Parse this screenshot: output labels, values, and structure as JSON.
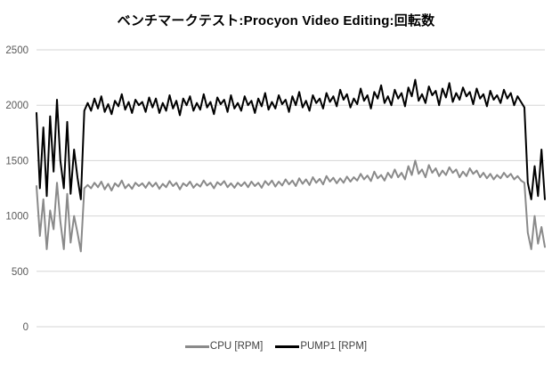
{
  "chart_data": {
    "type": "line",
    "title": "ベンチマークテスト:Procyon Video Editing:回転数",
    "xlabel": "",
    "ylabel": "",
    "ylim": [
      0,
      2500
    ],
    "yticks": [
      0,
      500,
      1000,
      1500,
      2000,
      2500
    ],
    "grid": "horizontal",
    "gridline_color": "#d6d6d6",
    "tick_label_color": "#595959",
    "legend_position": "bottom-center",
    "series": [
      {
        "name": "CPU [RPM]",
        "color": "#8a8a8a",
        "values": [
          1270,
          820,
          1150,
          700,
          1050,
          880,
          1300,
          950,
          700,
          1200,
          760,
          1000,
          850,
          680,
          1250,
          1280,
          1250,
          1300,
          1260,
          1310,
          1240,
          1290,
          1230,
          1295,
          1265,
          1320,
          1250,
          1285,
          1245,
          1300,
          1270,
          1295,
          1255,
          1305,
          1265,
          1300,
          1245,
          1290,
          1260,
          1315,
          1270,
          1300,
          1240,
          1295,
          1270,
          1310,
          1255,
          1290,
          1265,
          1320,
          1275,
          1300,
          1250,
          1305,
          1280,
          1315,
          1260,
          1295,
          1255,
          1300,
          1270,
          1305,
          1260,
          1310,
          1270,
          1300,
          1255,
          1315,
          1280,
          1320,
          1265,
          1310,
          1275,
          1330,
          1285,
          1320,
          1270,
          1340,
          1290,
          1330,
          1280,
          1350,
          1300,
          1335,
          1285,
          1360,
          1310,
          1345,
          1295,
          1340,
          1300,
          1355,
          1310,
          1350,
          1320,
          1380,
          1330,
          1365,
          1315,
          1400,
          1340,
          1370,
          1320,
          1390,
          1345,
          1420,
          1350,
          1390,
          1330,
          1450,
          1370,
          1500,
          1380,
          1420,
          1350,
          1460,
          1390,
          1430,
          1360,
          1410,
          1370,
          1440,
          1390,
          1420,
          1350,
          1400,
          1360,
          1430,
          1380,
          1410,
          1350,
          1390,
          1340,
          1380,
          1330,
          1370,
          1340,
          1390,
          1350,
          1380,
          1330,
          1360,
          1320,
          1300,
          850,
          700,
          1000,
          750,
          900,
          720
        ]
      },
      {
        "name": "PUMP1 [RPM]",
        "color": "#000000",
        "values": [
          1930,
          1250,
          1800,
          1180,
          1900,
          1400,
          2050,
          1500,
          1250,
          1850,
          1200,
          1600,
          1350,
          1150,
          1950,
          2020,
          1950,
          2060,
          1970,
          2080,
          1940,
          2010,
          1920,
          2040,
          1990,
          2100,
          1960,
          2030,
          1930,
          2050,
          2000,
          2030,
          1940,
          2070,
          1980,
          2060,
          1930,
          2020,
          1950,
          2090,
          1970,
          2040,
          1910,
          2060,
          2000,
          2080,
          1950,
          2020,
          1960,
          2100,
          1980,
          2030,
          1920,
          2070,
          2010,
          2050,
          1940,
          2090,
          1970,
          2020,
          1950,
          2080,
          2000,
          2040,
          1930,
          2060,
          1990,
          2110,
          1960,
          2030,
          1970,
          2090,
          2010,
          2050,
          1940,
          2080,
          2000,
          2120,
          1980,
          2040,
          1950,
          2090,
          2020,
          2060,
          1970,
          2110,
          2030,
          2080,
          1990,
          2140,
          2050,
          2100,
          1980,
          2060,
          2010,
          2150,
          2040,
          2090,
          1970,
          2120,
          2060,
          2180,
          2020,
          2080,
          2000,
          2140,
          2060,
          2110,
          1990,
          2160,
          2080,
          2230,
          2040,
          2100,
          2020,
          2170,
          2090,
          2130,
          2000,
          2150,
          2070,
          2200,
          2030,
          2110,
          2050,
          2160,
          2080,
          2120,
          2010,
          2150,
          2060,
          2100,
          1990,
          2130,
          2050,
          2090,
          2020,
          2140,
          2060,
          2110,
          2000,
          2080,
          2030,
          1980,
          1300,
          1150,
          1450,
          1180,
          1600,
          1150
        ]
      }
    ]
  }
}
